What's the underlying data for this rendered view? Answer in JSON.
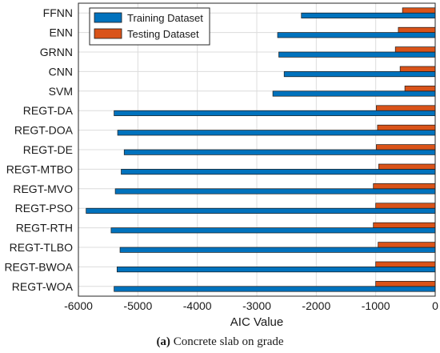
{
  "chart_data": {
    "type": "bar",
    "orientation": "horizontal",
    "categories": [
      "FFNN",
      "ENN",
      "GRNN",
      "CNN",
      "SVM",
      "REGT-DA",
      "REGT-DOA",
      "REGT-DE",
      "REGT-MTBO",
      "REGT-MVO",
      "REGT-PSO",
      "REGT-RTH",
      "REGT-TLBO",
      "REGT-BWOA",
      "REGT-WOA"
    ],
    "series": [
      {
        "name": "Training Dataset",
        "color": "#0072bd",
        "values": [
          -2250,
          -2650,
          -2630,
          -2540,
          -2730,
          -5400,
          -5340,
          -5230,
          -5280,
          -5380,
          -5870,
          -5450,
          -5300,
          -5350,
          -5400
        ]
      },
      {
        "name": "Testing Dataset",
        "color": "#d95319",
        "values": [
          -550,
          -620,
          -670,
          -590,
          -510,
          -990,
          -970,
          -990,
          -950,
          -1040,
          -1000,
          -1040,
          -960,
          -1000,
          -1000
        ]
      }
    ],
    "xlabel": "AIC Value",
    "xlim": [
      -6000,
      0
    ],
    "xticks": [
      -6000,
      -5000,
      -4000,
      -3000,
      -2000,
      -1000,
      0
    ],
    "grid": true,
    "legend_position": "top-left"
  },
  "caption": {
    "label": "(a)",
    "text": "Concrete slab on grade"
  }
}
